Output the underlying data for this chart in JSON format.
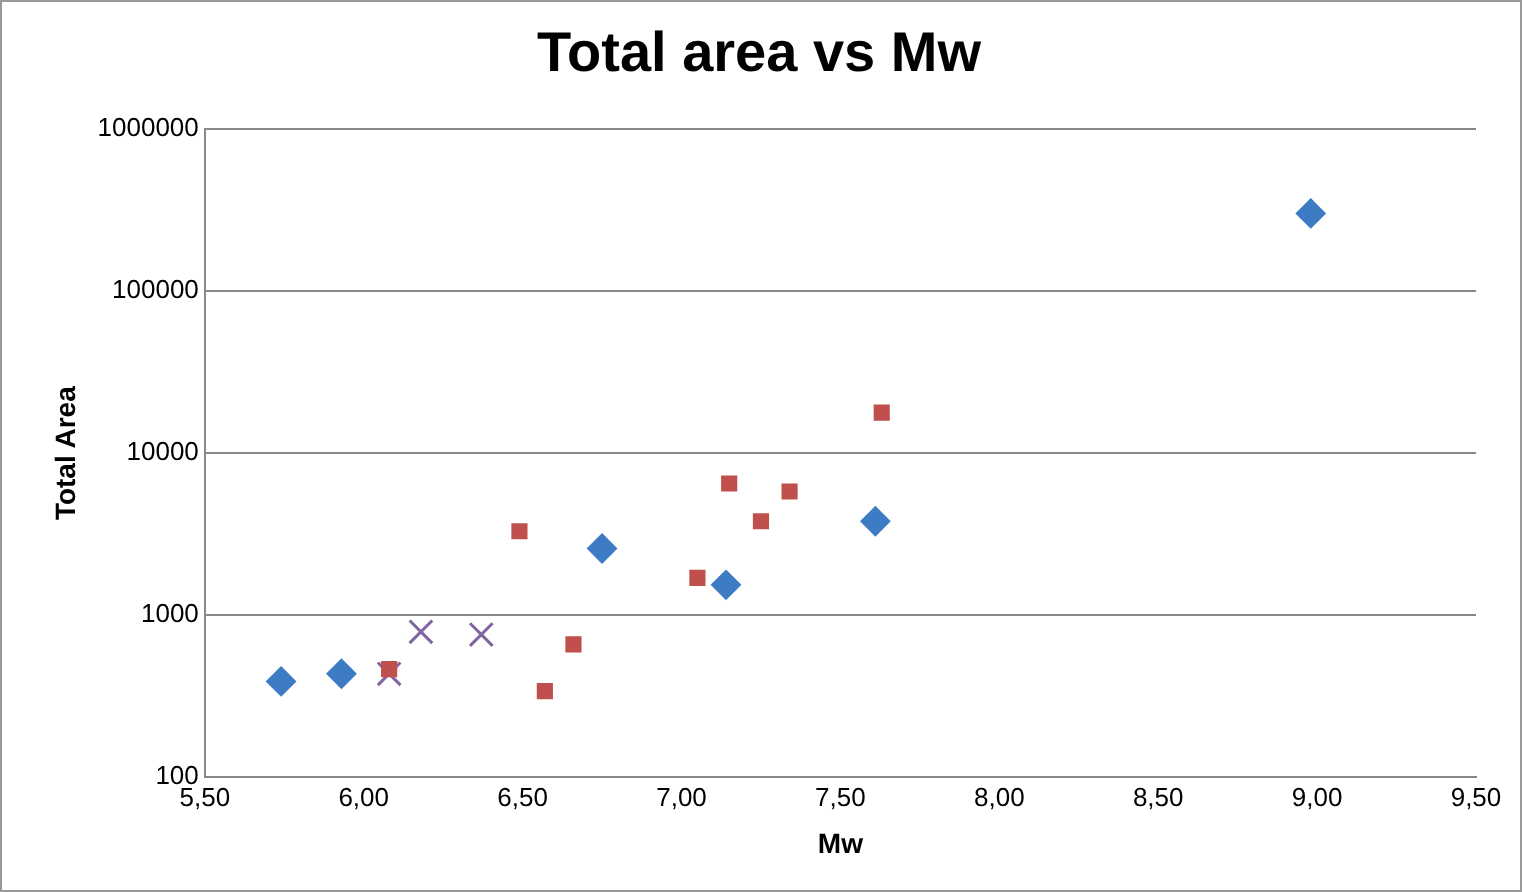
{
  "chart_data": {
    "type": "scatter",
    "title": "Total area vs Mw",
    "xlabel": "Mw",
    "ylabel": "Total Area",
    "log": "y",
    "grid": "y",
    "legend": false,
    "xlim": [
      5.5,
      9.5
    ],
    "xticks": [
      {
        "value": 5.5,
        "label": "5,50"
      },
      {
        "value": 6,
        "label": "6,00"
      },
      {
        "value": 6.5,
        "label": "6,50"
      },
      {
        "value": 7,
        "label": "7,00"
      },
      {
        "value": 7.5,
        "label": "7,50"
      },
      {
        "value": 8,
        "label": "8,00"
      },
      {
        "value": 8.5,
        "label": "8,50"
      },
      {
        "value": 9,
        "label": "9,00"
      },
      {
        "value": 9.5,
        "label": "9,50"
      }
    ],
    "ylim": [
      100,
      1000000
    ],
    "yticks": [
      100,
      1000,
      10000,
      100000,
      1000000
    ],
    "series": [
      {
        "color": "#3d7cc4",
        "marker": "diamond",
        "x": [
          5.74,
          5.93,
          6.75,
          7.14,
          7.61,
          8.98
        ],
        "values": [
          390,
          435,
          2580,
          1540,
          3800,
          302000
        ]
      },
      {
        "color": "#c0504d",
        "marker": "square",
        "x": [
          6.08,
          6.49,
          6.57,
          6.66,
          7.05,
          7.15,
          7.25,
          7.34,
          7.63
        ],
        "values": [
          465,
          3300,
          340,
          660,
          1700,
          6500,
          3800,
          5800,
          17800
        ]
      },
      {
        "color": "#8064a2",
        "marker": "cross",
        "x": [
          6.08,
          6.18,
          6.37
        ],
        "values": [
          435,
          790,
          760
        ]
      }
    ]
  }
}
